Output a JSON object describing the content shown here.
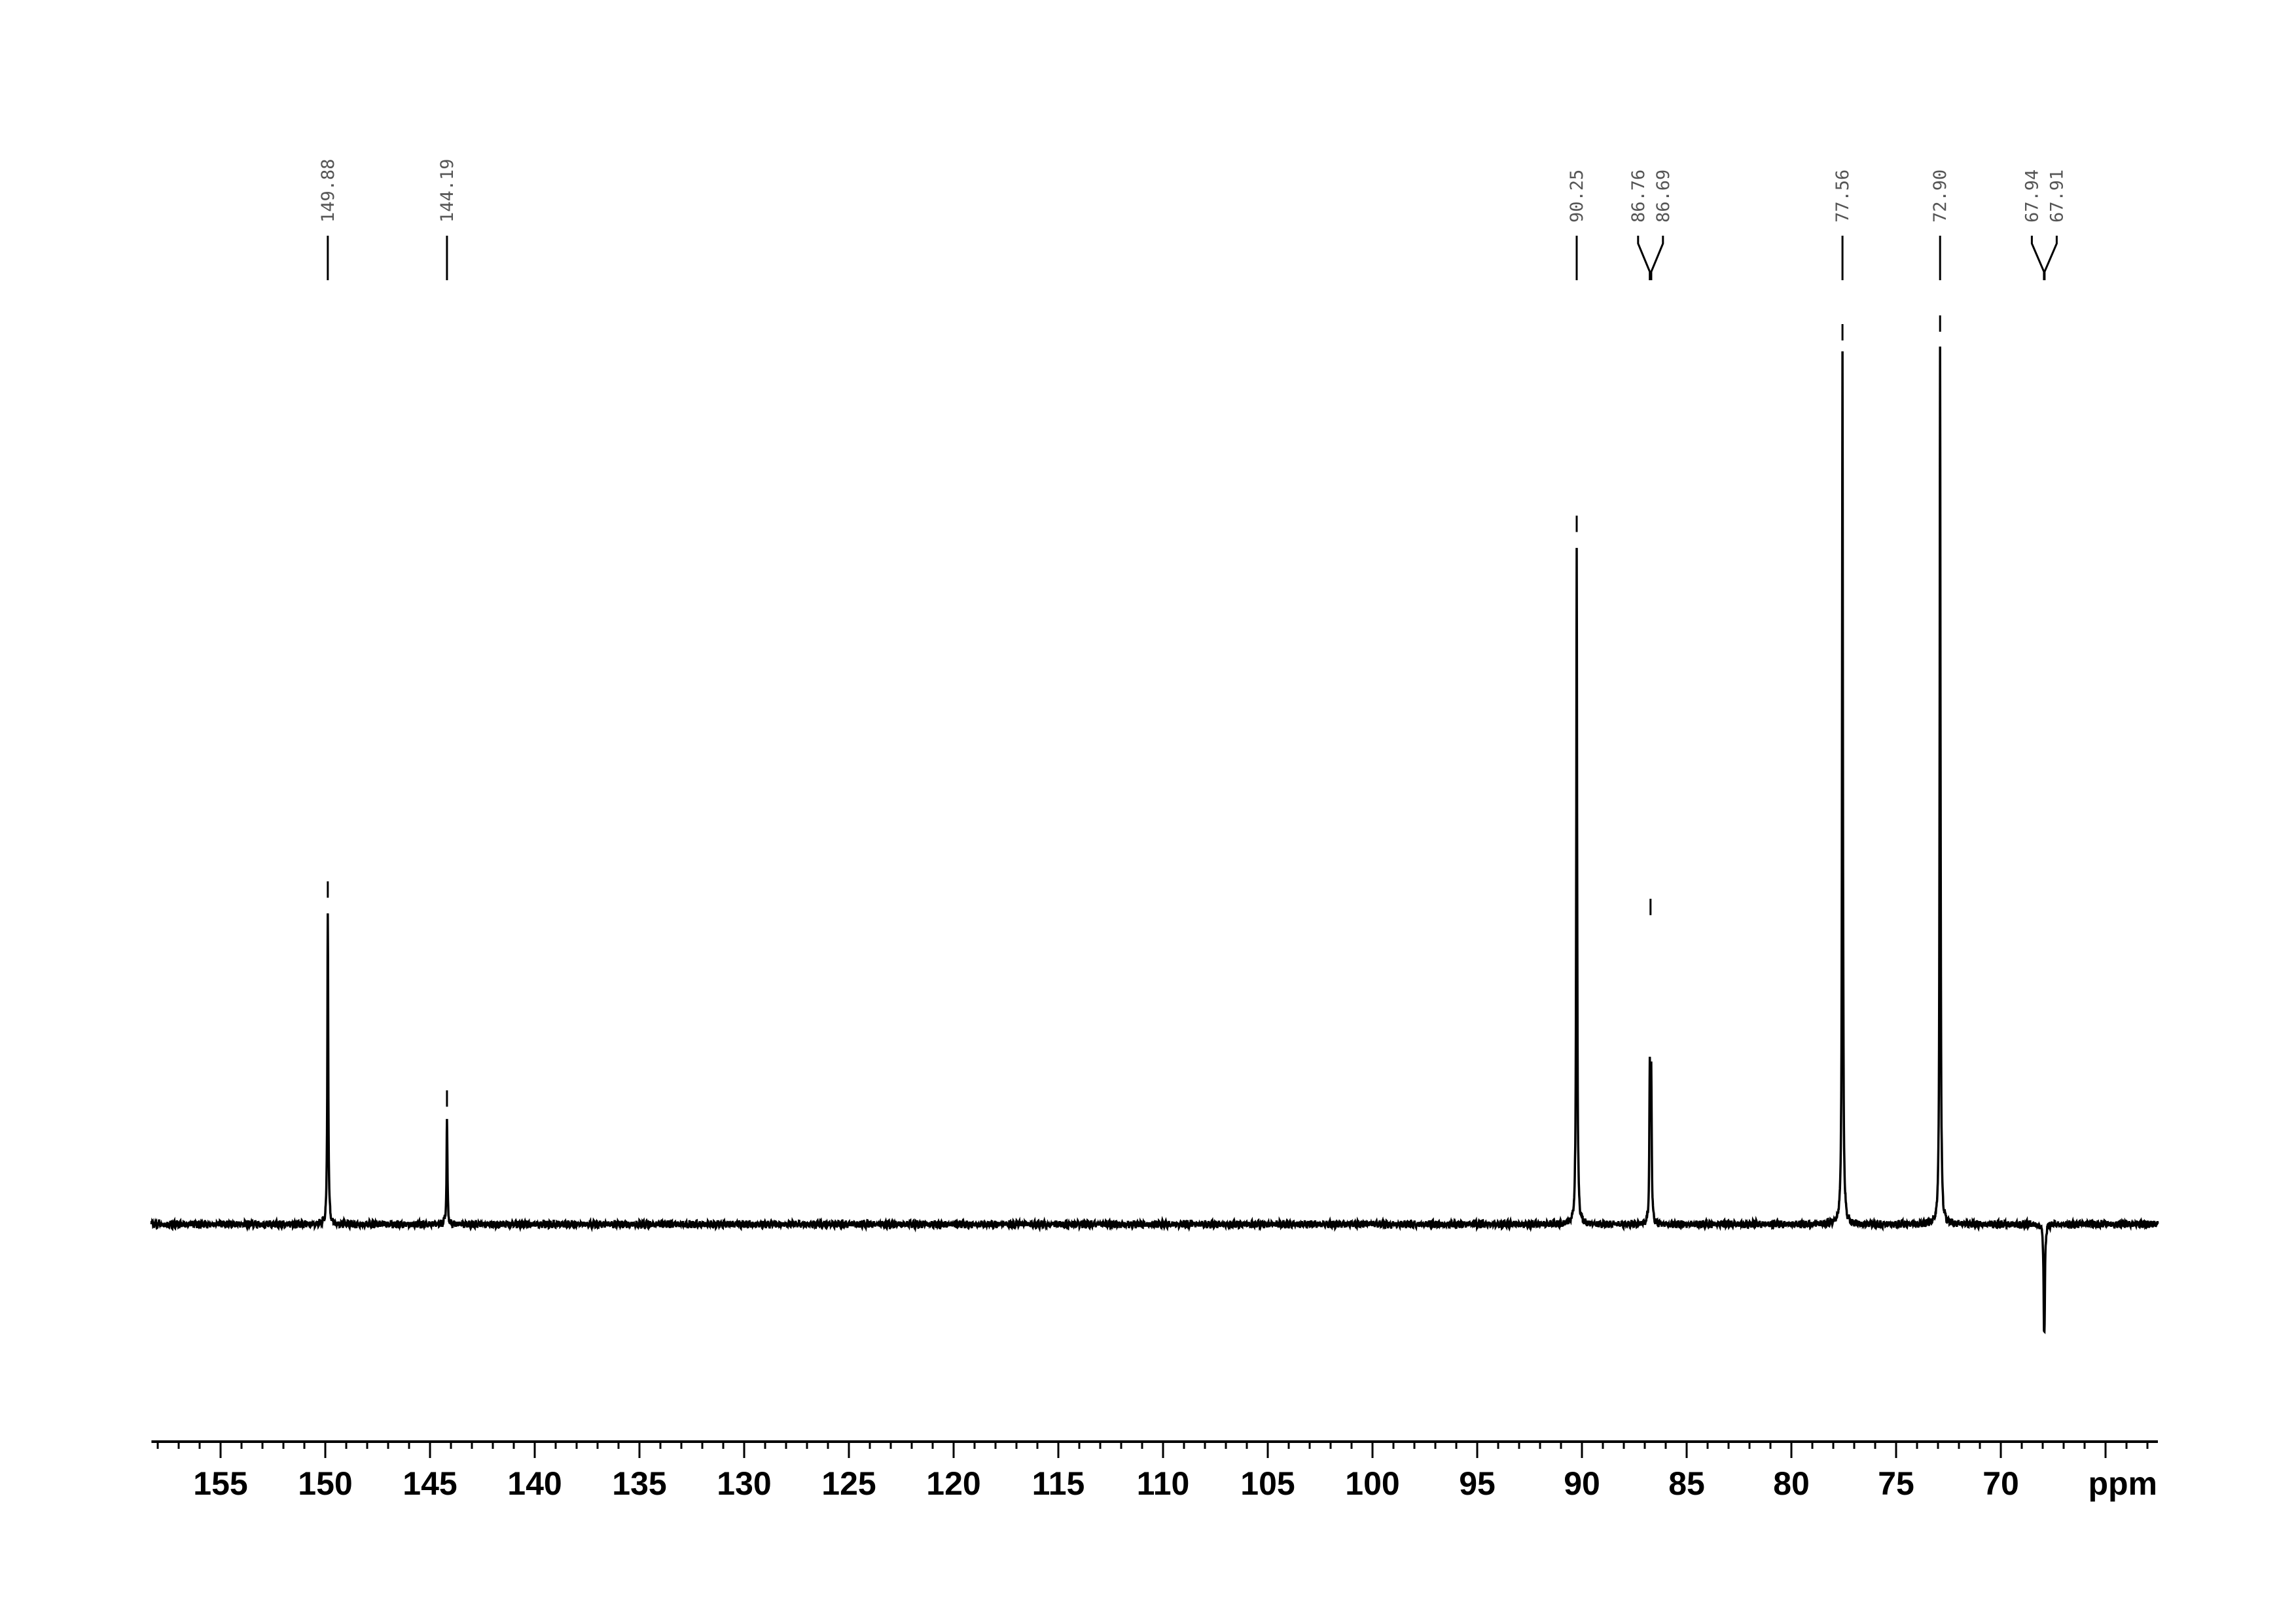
{
  "chart_data": {
    "type": "line",
    "title": "",
    "xlabel": "ppm",
    "ylabel": "",
    "xlim": [
      158.3,
      62.5
    ],
    "x_reversed": true,
    "ylim": [
      -0.4,
      1.1
    ],
    "grid": false,
    "legend": "none",
    "x_ticks_major": [
      155,
      150,
      145,
      140,
      135,
      130,
      125,
      120,
      115,
      110,
      105,
      100,
      95,
      90,
      85,
      80,
      75,
      70
    ],
    "x_tick_labels": [
      "155",
      "150",
      "145",
      "140",
      "135",
      "130",
      "125",
      "120",
      "115",
      "110",
      "105",
      "100",
      "95",
      "90",
      "85",
      "80",
      "75",
      "70"
    ],
    "x_minor_step": 1,
    "line_color": "#000000",
    "label_color": "#555555",
    "peaks": [
      {
        "ppm": 149.88,
        "label": "149.88",
        "intensity": 0.36
      },
      {
        "ppm": 144.19,
        "label": "144.19",
        "intensity": 0.12
      },
      {
        "ppm": 90.25,
        "label": "90.25",
        "intensity": 0.78
      },
      {
        "ppm": 86.76,
        "label": "86.76",
        "intensity": 0.17
      },
      {
        "ppm": 86.69,
        "label": "86.69",
        "intensity": 0.17
      },
      {
        "ppm": 77.56,
        "label": "77.56",
        "intensity": 1.0
      },
      {
        "ppm": 72.9,
        "label": "72.90",
        "intensity": 1.01
      },
      {
        "ppm": 67.94,
        "label": "67.94",
        "intensity": -0.085
      },
      {
        "ppm": 67.91,
        "label": "67.91",
        "intensity": -0.085
      }
    ],
    "label_groups": [
      {
        "members": [
          0
        ]
      },
      {
        "members": [
          1
        ]
      },
      {
        "members": [
          2
        ]
      },
      {
        "members": [
          3,
          4
        ]
      },
      {
        "members": [
          5
        ]
      },
      {
        "members": [
          6
        ]
      },
      {
        "members": [
          7,
          8
        ]
      }
    ]
  }
}
